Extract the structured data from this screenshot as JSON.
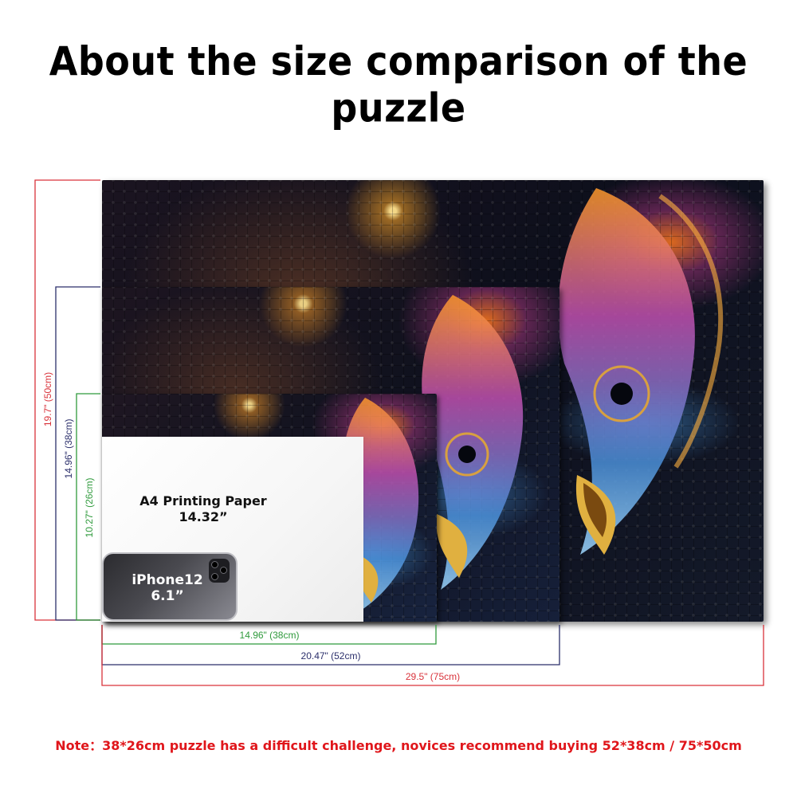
{
  "title": "About the size comparison of the puzzle",
  "objects": {
    "paper_label_line1": "A4 Printing Paper",
    "paper_label_line2": "14.32”",
    "phone_label_line1": "iPhone12",
    "phone_label_line2": "6.1”"
  },
  "dimensions": {
    "large_height": "19.7\" (50cm)",
    "medium_height": "14.96\" (38cm)",
    "small_height": "10.27\" (26cm)",
    "small_width": "14.96\" (38cm)",
    "medium_width": "20.47\" (52cm)",
    "large_width": "29.5\" (75cm)"
  },
  "colors": {
    "large": "#d9333b",
    "medium": "#2b2f6b",
    "small": "#2f9a3c",
    "note": "#e0161b"
  },
  "note": "Note：38*26cm puzzle has a difficult challenge, novices recommend buying 52*38cm / 75*50cm"
}
